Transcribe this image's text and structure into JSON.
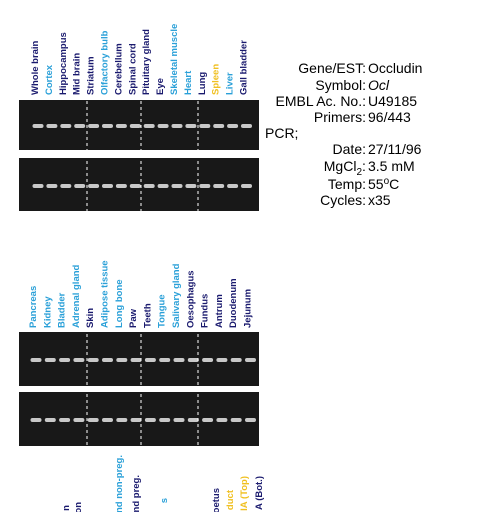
{
  "panel1": {
    "lanes": [
      {
        "label": "Whole brain",
        "color": "#1a1a6e"
      },
      {
        "label": "Cortex",
        "color": "#2aa0d8"
      },
      {
        "label": "Hippocampus",
        "color": "#1a1a6e"
      },
      {
        "label": "Mid brain",
        "color": "#1a1a6e"
      },
      {
        "label": "Striatum",
        "color": "#1a1a6e"
      },
      {
        "label": "Olfactory bulb",
        "color": "#2aa0d8"
      },
      {
        "label": "Cerebellum",
        "color": "#1a1a6e"
      },
      {
        "label": "Spinal cord",
        "color": "#1a1a6e"
      },
      {
        "label": "Pituitary gland",
        "color": "#1a1a6e"
      },
      {
        "label": "Eye",
        "color": "#1a1a6e"
      },
      {
        "label": "Skeletal muscle",
        "color": "#2aa0d8"
      },
      {
        "label": "Heart",
        "color": "#2aa0d8"
      },
      {
        "label": "Lung",
        "color": "#1a1a6e"
      },
      {
        "label": "Spleen",
        "color": "#f0c020"
      },
      {
        "label": "Liver",
        "color": "#2aa0d8"
      },
      {
        "label": "Gall bladder",
        "color": "#1a1a6e"
      }
    ]
  },
  "panel2": {
    "lanes": [
      {
        "label": "Pancreas",
        "color": "#2aa0d8"
      },
      {
        "label": "Kidney",
        "color": "#2aa0d8"
      },
      {
        "label": "Bladder",
        "color": "#2aa0d8"
      },
      {
        "label": "Adrenal gland",
        "color": "#2aa0d8"
      },
      {
        "label": "Skin",
        "color": "#1a1a6e"
      },
      {
        "label": "Adipose tissue",
        "color": "#2aa0d8"
      },
      {
        "label": "Long bone",
        "color": "#2aa0d8"
      },
      {
        "label": "Paw",
        "color": "#1a1a6e"
      },
      {
        "label": "Teeth",
        "color": "#1a1a6e"
      },
      {
        "label": "Tongue",
        "color": "#2aa0d8"
      },
      {
        "label": "Salivary gland",
        "color": "#2aa0d8"
      },
      {
        "label": "Oesophagus",
        "color": "#1a1a6e"
      },
      {
        "label": "Fundus",
        "color": "#1a1a6e"
      },
      {
        "label": "Antrum",
        "color": "#1a1a6e"
      },
      {
        "label": "Duodenum",
        "color": "#1a1a6e"
      },
      {
        "label": "Jejunum",
        "color": "#1a1a6e"
      }
    ]
  },
  "panel3": {
    "lanes": [
      {
        "label": "n",
        "color": "#1a1a6e"
      },
      {
        "label": "on",
        "color": "#1a1a6e"
      },
      {
        "label": "nd non-preg.",
        "color": "#2aa0d8"
      },
      {
        "label": "nd preg.",
        "color": "#1a1a6e"
      },
      {
        "label": "s",
        "color": "#2aa0d8"
      },
      {
        "label": "oetus",
        "color": "#1a1a6e"
      },
      {
        "label": "duct",
        "color": "#f0c020"
      },
      {
        "label": "IA (Top)",
        "color": "#f0c020"
      },
      {
        "label": "A (Bot.)",
        "color": "#1a1a6e"
      }
    ]
  },
  "info": {
    "gene_label": "Gene/EST:",
    "gene": "Occludin",
    "symbol_label": "Symbol:",
    "symbol": "Ocl",
    "embl_label": "EMBL Ac. No.:",
    "embl": "U49185",
    "primers_label": "Primers:",
    "primers": "96/443",
    "pcr_label": "PCR;",
    "date_label": "Date:",
    "date": "27/11/96",
    "mgcl_label": "MgCl",
    "mgcl_sub": "2",
    "mgcl_colon": ":",
    "mgcl": "3.5 mM",
    "temp_label": "Temp:",
    "temp": "55",
    "temp_sup": "o",
    "temp_unit": "C",
    "cycles_label": "Cycles:",
    "cycles": "x35"
  }
}
